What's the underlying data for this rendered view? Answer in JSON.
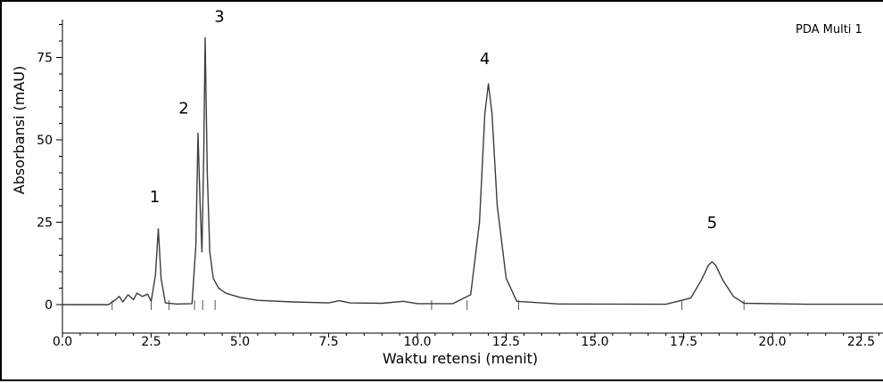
{
  "chart_data": {
    "type": "line",
    "title": "",
    "legend_label": "PDA Multi 1",
    "xlabel": "Waktu retensi (menit)",
    "ylabel": "Absorbansi (mAU)",
    "xlim": [
      0,
      23.5
    ],
    "ylim": [
      -3,
      85
    ],
    "x_ticks": [
      0.0,
      2.5,
      5.0,
      7.5,
      10.0,
      12.5,
      15.0,
      17.5,
      20.0,
      22.5
    ],
    "x_tick_labels": [
      "0.0",
      "2.5",
      "5.0",
      "7.5",
      "10.0",
      "12.5",
      "15.0",
      "17.5",
      "20.0",
      "22.5"
    ],
    "y_ticks": [
      0,
      25,
      50,
      75
    ],
    "y_tick_labels": [
      "0",
      "25",
      "50",
      "75"
    ],
    "grid": false,
    "line_color": "#3c3c3c",
    "peaks": [
      {
        "label": "1",
        "x": 2.7,
        "y": 23
      },
      {
        "label": "2",
        "x": 3.82,
        "y": 52
      },
      {
        "label": "3",
        "x": 4.02,
        "y": 81
      },
      {
        "label": "4",
        "x": 12.0,
        "y": 67
      },
      {
        "label": "5",
        "x": 18.3,
        "y": 13
      }
    ],
    "series": [
      {
        "x": [
          0.0,
          1.3,
          1.5,
          1.6,
          1.7,
          1.85,
          2.0,
          2.1,
          2.25,
          2.4,
          2.5,
          2.62,
          2.7,
          2.78,
          2.9,
          3.2,
          3.65,
          3.76,
          3.82,
          3.88,
          3.93,
          3.98,
          4.02,
          4.08,
          4.15,
          4.25,
          4.4,
          4.6,
          5.0,
          5.5,
          6.5,
          7.5,
          7.8,
          8.1,
          9.0,
          9.6,
          10.0,
          11.0,
          11.5,
          11.75,
          11.9,
          12.0,
          12.1,
          12.25,
          12.5,
          12.8,
          14.0,
          17.0,
          17.7,
          18.0,
          18.2,
          18.3,
          18.4,
          18.6,
          18.9,
          19.2,
          21.0,
          23.5
        ],
        "y": [
          0,
          0,
          1.5,
          2.5,
          0.8,
          3.0,
          1.5,
          3.5,
          2.5,
          3.2,
          1.0,
          9,
          23,
          8,
          0.5,
          0.2,
          0.3,
          18,
          52,
          30,
          16,
          45,
          81,
          40,
          16,
          8,
          5,
          3.5,
          2.2,
          1.3,
          0.8,
          0.5,
          1.2,
          0.5,
          0.4,
          1.0,
          0.3,
          0.3,
          3,
          25,
          58,
          67,
          58,
          30,
          8,
          1,
          0.2,
          0.1,
          2,
          7.5,
          12,
          13,
          12,
          7.5,
          2.5,
          0.4,
          0.1,
          0.1
        ]
      }
    ]
  }
}
